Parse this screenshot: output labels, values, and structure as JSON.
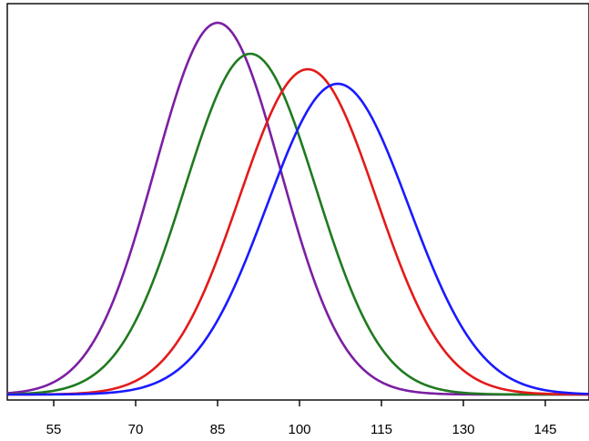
{
  "chart_data": {
    "type": "line",
    "title": "",
    "xlabel": "",
    "ylabel": "",
    "xlim": [
      46.5,
      153
    ],
    "ylim": [
      0,
      0.04
    ],
    "grid": false,
    "legend": "none",
    "x_ticks": [
      55,
      70,
      85,
      100,
      115,
      130,
      145
    ],
    "x_tick_labels": [
      "55",
      "70",
      "85",
      "100",
      "115",
      "130",
      "145"
    ],
    "series": [
      {
        "color": "#7b1fa2",
        "distribution": "normal",
        "mean": 85,
        "sd": 11.5,
        "peak": 0.0384
      },
      {
        "color": "#1f7a1f",
        "distribution": "normal",
        "mean": 91,
        "sd": 12.0,
        "peak": 0.0352
      },
      {
        "color": "#e31a1a",
        "distribution": "normal",
        "mean": 101.5,
        "sd": 12.5,
        "peak": 0.0336
      },
      {
        "color": "#1a1aff",
        "distribution": "normal",
        "mean": 107,
        "sd": 13.0,
        "peak": 0.0321
      }
    ]
  }
}
